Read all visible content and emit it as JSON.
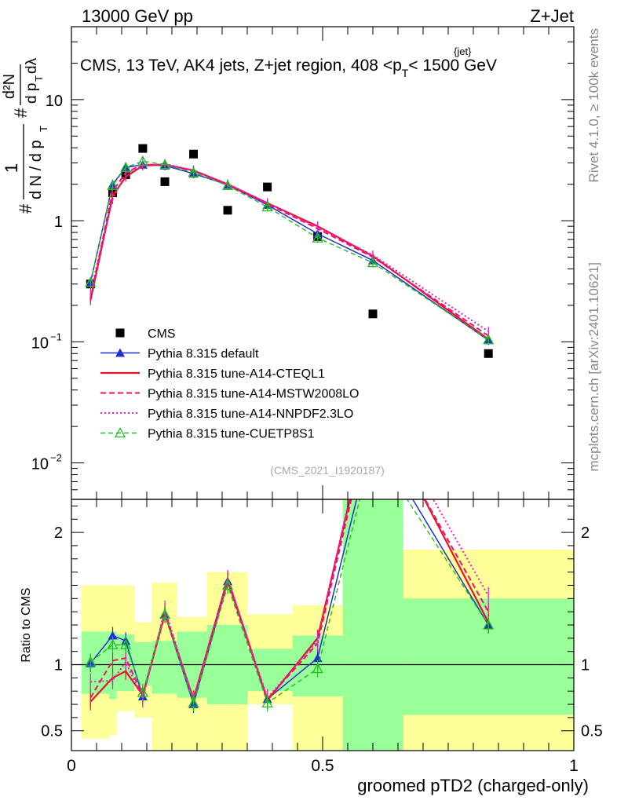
{
  "header": {
    "left": "13000 GeV pp",
    "right": "Z+Jet"
  },
  "side_labels": {
    "rivet": "Rivet 4.1.0, ≥ 100k events",
    "mcplots": "mcplots.cern.ch [arXiv:2401.10621]"
  },
  "colors": {
    "cms": "#000000",
    "default": "#1f2fd6",
    "cteql1": "#e8132b",
    "mstw": "#f0106a",
    "nnpdf": "#e020c8",
    "cuetp8s1": "#1fbf1f",
    "band_inner": "#99ff99",
    "band_outer": "#ffff99"
  },
  "chart_data": [
    {
      "type": "line",
      "panel": "main",
      "title": "CMS, 13 TeV, AK4 jets, Z+jet region, 408 <p_T^{jet}< 1500 GeV",
      "title_parts": {
        "prefix": "CMS, 13 TeV, AK4 jets, Z+jet region, 408 <p",
        "sup": "{jet}",
        "sub": "T",
        "suffix": "< 1500 GeV"
      },
      "ylabel": "1/N dN/dp_T d^2N/dp_T dλ",
      "ylabel_parts": {
        "frac1_num": "1",
        "frac1_den": "d N / d p",
        "frac1_sub": "T",
        "frac2_num": "d²N",
        "frac2_den": "d p",
        "frac2_sub": "T",
        "frac2_tail": "dλ",
        "hash": "#"
      },
      "xlim": [
        0,
        1
      ],
      "ylim": [
        0.005,
        40
      ],
      "yscale": "log",
      "ytick_labels": [
        "10^{-2}",
        "10^{-1}",
        "1",
        "10"
      ],
      "ytick_parts": [
        {
          "value": 0.01,
          "base": "10",
          "exp": "−2"
        },
        {
          "value": 0.1,
          "base": "10",
          "exp": "−1"
        },
        {
          "value": 1,
          "base": "1",
          "exp": ""
        },
        {
          "value": 10,
          "base": "10",
          "exp": ""
        }
      ],
      "x": [
        0.038,
        0.082,
        0.108,
        0.142,
        0.186,
        0.243,
        0.311,
        0.39,
        0.49,
        0.6,
        0.83
      ],
      "series": [
        {
          "name": "CMS",
          "values": [
            0.3,
            1.7,
            2.4,
            3.95,
            2.1,
            3.55,
            1.22,
            1.9,
            0.74,
            0.17,
            0.08
          ]
        },
        {
          "name": "Pythia 8.315 default",
          "values": [
            0.31,
            2.0,
            2.75,
            2.9,
            2.85,
            2.45,
            1.98,
            1.35,
            0.78,
            0.47,
            0.103
          ]
        },
        {
          "name": "Pythia 8.315 tune-A14-CTEQL1",
          "values": [
            0.22,
            1.6,
            2.3,
            2.85,
            2.9,
            2.6,
            2.0,
            1.4,
            0.9,
            0.51,
            0.105
          ]
        },
        {
          "name": "Pythia 8.315 tune-A14-MSTW2008LO",
          "values": [
            0.23,
            1.75,
            2.5,
            2.9,
            2.9,
            2.58,
            1.97,
            1.38,
            0.86,
            0.5,
            0.112
          ]
        },
        {
          "name": "Pythia 8.315 tune-A14-NNPDF2.3LO",
          "values": [
            0.26,
            1.5,
            2.45,
            2.85,
            2.95,
            2.6,
            2.0,
            1.4,
            0.88,
            0.52,
            0.122
          ]
        },
        {
          "name": "Pythia 8.315 tune-CUETP8S1",
          "values": [
            0.31,
            1.95,
            2.75,
            3.1,
            2.9,
            2.5,
            1.95,
            1.3,
            0.72,
            0.45,
            0.104
          ]
        }
      ],
      "watermark": "(CMS_2021_I1920187)"
    },
    {
      "type": "line",
      "panel": "ratio",
      "ylabel": "Ratio to CMS",
      "xlabel": "groomed pTD2 (charged-only)",
      "xlim": [
        0,
        1
      ],
      "ylim": [
        0.35,
        2.25
      ],
      "ytick_labels": [
        "0.5",
        "1",
        "2"
      ],
      "xtick_labels": [
        "0",
        "0.5",
        "1"
      ],
      "bins": [
        0,
        0.075,
        0.09,
        0.125,
        0.16,
        0.21,
        0.27,
        0.35,
        0.44,
        0.54,
        0.66,
        1.0
      ],
      "band_inner": [
        [
          0.78,
          1.25
        ],
        [
          0.74,
          1.25
        ],
        [
          0.8,
          1.23
        ],
        [
          0.84,
          1.17
        ],
        [
          0.78,
          1.18
        ],
        [
          0.75,
          1.25
        ],
        [
          0.7,
          1.3
        ],
        [
          0.8,
          1.12
        ],
        [
          0.76,
          1.22
        ],
        [
          0.35,
          2.25
        ],
        [
          0.62,
          1.5
        ]
      ],
      "band_outer": [
        [
          0.44,
          1.6
        ],
        [
          0.47,
          1.6
        ],
        [
          0.65,
          1.6
        ],
        [
          0.6,
          1.32
        ],
        [
          0.35,
          1.62
        ],
        [
          0.35,
          1.36
        ],
        [
          0.35,
          1.7
        ],
        [
          0.7,
          1.38
        ],
        [
          0.35,
          1.45
        ],
        [
          0.35,
          2.25
        ],
        [
          0.35,
          1.87
        ]
      ],
      "x": [
        0.038,
        0.082,
        0.108,
        0.142,
        0.186,
        0.243,
        0.311,
        0.39,
        0.49,
        0.6,
        0.83
      ],
      "series": [
        {
          "name": "Pythia 8.315 default",
          "values": [
            1.01,
            1.22,
            1.18,
            0.76,
            1.38,
            0.7,
            1.63,
            0.74,
            1.05,
            2.75,
            1.3
          ]
        },
        {
          "name": "Pythia 8.315 tune-A14-CTEQL1",
          "values": [
            0.72,
            0.9,
            0.95,
            0.77,
            1.38,
            0.74,
            1.65,
            0.73,
            1.2,
            3.0,
            1.32
          ]
        },
        {
          "name": "Pythia 8.315 tune-A14-MSTW2008LO",
          "values": [
            0.75,
            1.03,
            1.05,
            0.77,
            1.4,
            0.73,
            1.63,
            0.74,
            1.16,
            2.95,
            1.4
          ]
        },
        {
          "name": "Pythia 8.315 tune-A14-NNPDF2.3LO",
          "values": [
            0.87,
            0.88,
            1.02,
            0.74,
            1.42,
            0.73,
            1.65,
            0.75,
            1.18,
            3.05,
            1.52
          ]
        },
        {
          "name": "Pythia 8.315 tune-CUETP8S1",
          "values": [
            1.02,
            1.15,
            1.15,
            0.79,
            1.38,
            0.71,
            1.6,
            0.71,
            0.97,
            2.65,
            1.3
          ]
        }
      ]
    }
  ]
}
